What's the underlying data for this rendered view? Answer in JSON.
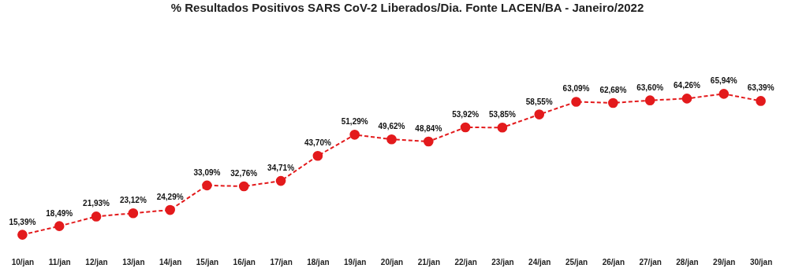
{
  "chart_data": {
    "type": "line",
    "title": "% Resultados Positivos SARS CoV-2 Liberados/Dia. Fonte LACEN/BA - Janeiro/2022",
    "categories": [
      "10/jan",
      "11/jan",
      "12/jan",
      "13/jan",
      "14/jan",
      "15/jan",
      "16/jan",
      "17/jan",
      "18/jan",
      "19/jan",
      "20/jan",
      "21/jan",
      "22/jan",
      "23/jan",
      "24/jan",
      "25/jan",
      "26/jan",
      "27/jan",
      "28/jan",
      "29/jan",
      "30/jan"
    ],
    "values": [
      15.39,
      18.49,
      21.93,
      23.12,
      24.29,
      33.09,
      32.76,
      34.71,
      43.7,
      51.29,
      49.62,
      48.84,
      53.92,
      53.85,
      58.55,
      63.09,
      62.68,
      63.6,
      64.26,
      65.94,
      63.39
    ],
    "value_labels": [
      "15,39%",
      "18,49%",
      "21,93%",
      "23,12%",
      "24,29%",
      "33,09%",
      "32,76%",
      "34,71%",
      "43,70%",
      "51,29%",
      "49,62%",
      "48,84%",
      "53,92%",
      "53,85%",
      "58,55%",
      "63,09%",
      "62,68%",
      "63,60%",
      "64,26%",
      "65,94%",
      "63,39%"
    ],
    "color": "#e31a1c",
    "marker": "circle",
    "line_style": "dashed",
    "grid": false
  }
}
